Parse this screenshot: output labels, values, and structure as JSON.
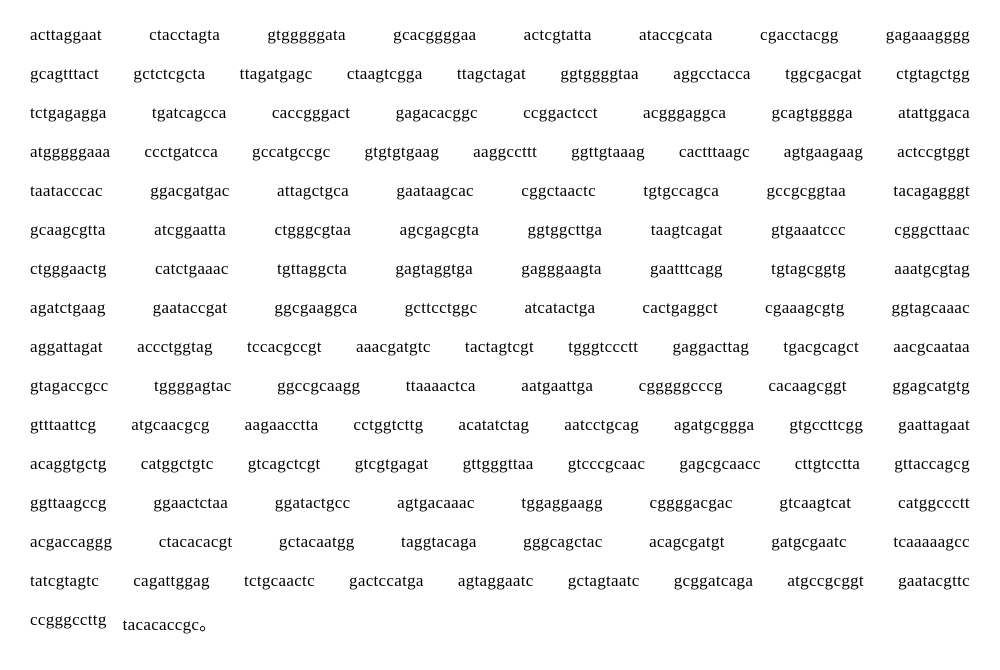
{
  "sequence": {
    "font_family": "Times New Roman",
    "font_size": 17,
    "color": "#000000",
    "background": "#ffffff",
    "line_spacing": 19,
    "block_gap_justified": true,
    "lines": [
      [
        "acttaggaat",
        "ctacctagta",
        "gtgggggata",
        "gcacggggaa",
        "actcgtatta",
        "ataccgcata",
        "cgacctacgg",
        "gagaaagggg"
      ],
      [
        "gcagtttact",
        "gctctcgcta",
        "ttagatgagc",
        "ctaagtcgga",
        "ttagctagat",
        "ggtggggtaa",
        "aggcctacca",
        "tggcgacgat",
        "ctgtagctgg"
      ],
      [
        "tctgagagga",
        "tgatcagcca",
        "caccgggact",
        "gagacacggc",
        "ccggactcct",
        "acgggaggca",
        "gcagtgggga",
        "atattggaca"
      ],
      [
        "atgggggaaa",
        "ccctgatcca",
        "gccatgccgc",
        "gtgtgtgaag",
        "aaggccttt",
        "ggttgtaaag",
        "cactttaagc",
        "agtgaagaag",
        "actccgtggt"
      ],
      [
        "taatacccac",
        "ggacgatgac",
        "attagctgca",
        "gaataagcac",
        "cggctaactc",
        "tgtgccagca",
        "gccgcggtaa",
        "tacagagggt"
      ],
      [
        "gcaagcgtta",
        "atcggaatta",
        "ctgggcgtaa",
        "agcgagcgta",
        "ggtggcttga",
        "taagtcagat",
        "gtgaaatccc",
        "cgggcttaac"
      ],
      [
        "ctgggaactg",
        "catctgaaac",
        "tgttaggcta",
        "gagtaggtga",
        "gagggaagta",
        "gaatttcagg",
        "tgtagcggtg",
        "aaatgcgtag"
      ],
      [
        "agatctgaag",
        "gaataccgat",
        "ggcgaaggca",
        "gcttcctggc",
        "atcatactga",
        "cactgaggct",
        "cgaaagcgtg",
        "ggtagcaaac"
      ],
      [
        "aggattagat",
        "accctggtag",
        "tccacgccgt",
        "aaacgatgtc",
        "tactagtcgt",
        "tgggtccctt",
        "gaggacttag",
        "tgacgcagct",
        "aacgcaataa"
      ],
      [
        "gtagaccgcc",
        "tggggagtac",
        "ggccgcaagg",
        "ttaaaactca",
        "aatgaattga",
        "cgggggcccg",
        "cacaagcggt",
        "ggagcatgtg"
      ],
      [
        "gtttaattcg",
        "atgcaacgcg",
        "aagaacctta",
        "cctggtcttg",
        "acatatctag",
        "aatcctgcag",
        "agatgcggga",
        "gtgccttcgg",
        "gaattagaat"
      ],
      [
        "acaggtgctg",
        "catggctgtc",
        "gtcagctcgt",
        "gtcgtgagat",
        "gttgggttaa",
        "gtcccgcaac",
        "gagcgcaacc",
        "cttgtcctta",
        "gttaccagcg"
      ],
      [
        "ggttaagccg",
        "ggaactctaa",
        "ggatactgcc",
        "agtgacaaac",
        "tggaggaagg",
        "cggggacgac",
        "gtcaagtcat",
        "catggccctt"
      ],
      [
        "acgaccaggg",
        "ctacacacgt",
        "gctacaatgg",
        "taggtacaga",
        "gggcagctac",
        "acagcgatgt",
        "gatgcgaatc",
        "tcaaaaagcc"
      ],
      [
        "tatcgtagtc",
        "cagattggag",
        "tctgcaactc",
        "gactccatga",
        "agtaggaatc",
        "gctagtaatc",
        "gcggatcaga",
        "atgccgcggt",
        "gaatacgttc"
      ],
      [
        "ccgggccttg",
        "tacacaccgc。"
      ]
    ]
  }
}
